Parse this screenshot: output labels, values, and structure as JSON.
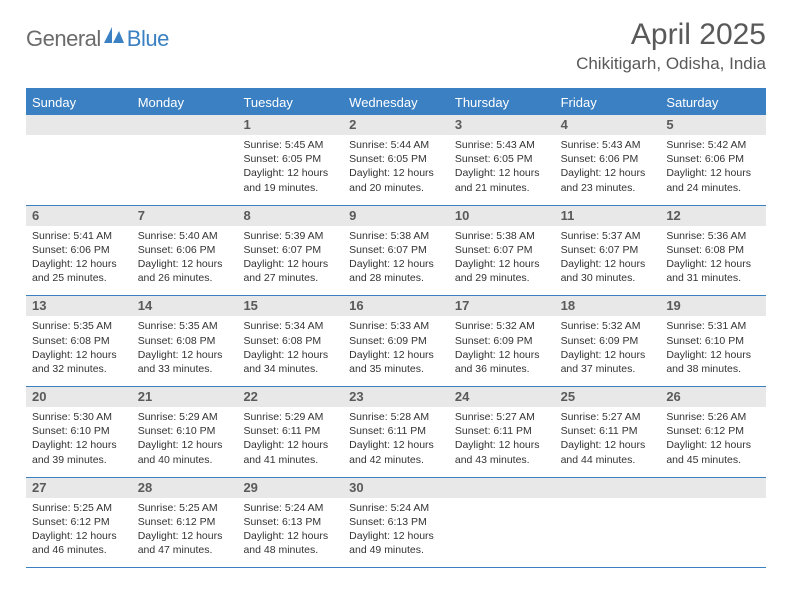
{
  "brand": {
    "text_general": "General",
    "text_blue": "Blue",
    "icon_color": "#3a80c3",
    "text_general_color": "#6b6b6b",
    "text_blue_color": "#3a80c3"
  },
  "header": {
    "month_title": "April 2025",
    "location": "Chikitigarh, Odisha, India",
    "title_color": "#595959"
  },
  "colors": {
    "header_bg": "#3a80c3",
    "header_text": "#ffffff",
    "row_divider": "#3a80c3",
    "daynum_bg": "#e8e8e8",
    "daynum_text": "#5a5a5a",
    "details_text": "#333333",
    "page_bg": "#ffffff"
  },
  "typography": {
    "month_title_size": 30,
    "location_size": 17,
    "dayhead_size": 13,
    "daynum_size": 13,
    "details_size": 10.5,
    "font_family": "Arial"
  },
  "day_headers": [
    "Sunday",
    "Monday",
    "Tuesday",
    "Wednesday",
    "Thursday",
    "Friday",
    "Saturday"
  ],
  "weeks": [
    [
      {
        "day": "",
        "sunrise": "",
        "sunset": "",
        "daylight1": "",
        "daylight2": ""
      },
      {
        "day": "",
        "sunrise": "",
        "sunset": "",
        "daylight1": "",
        "daylight2": ""
      },
      {
        "day": "1",
        "sunrise": "Sunrise: 5:45 AM",
        "sunset": "Sunset: 6:05 PM",
        "daylight1": "Daylight: 12 hours",
        "daylight2": "and 19 minutes."
      },
      {
        "day": "2",
        "sunrise": "Sunrise: 5:44 AM",
        "sunset": "Sunset: 6:05 PM",
        "daylight1": "Daylight: 12 hours",
        "daylight2": "and 20 minutes."
      },
      {
        "day": "3",
        "sunrise": "Sunrise: 5:43 AM",
        "sunset": "Sunset: 6:05 PM",
        "daylight1": "Daylight: 12 hours",
        "daylight2": "and 21 minutes."
      },
      {
        "day": "4",
        "sunrise": "Sunrise: 5:43 AM",
        "sunset": "Sunset: 6:06 PM",
        "daylight1": "Daylight: 12 hours",
        "daylight2": "and 23 minutes."
      },
      {
        "day": "5",
        "sunrise": "Sunrise: 5:42 AM",
        "sunset": "Sunset: 6:06 PM",
        "daylight1": "Daylight: 12 hours",
        "daylight2": "and 24 minutes."
      }
    ],
    [
      {
        "day": "6",
        "sunrise": "Sunrise: 5:41 AM",
        "sunset": "Sunset: 6:06 PM",
        "daylight1": "Daylight: 12 hours",
        "daylight2": "and 25 minutes."
      },
      {
        "day": "7",
        "sunrise": "Sunrise: 5:40 AM",
        "sunset": "Sunset: 6:06 PM",
        "daylight1": "Daylight: 12 hours",
        "daylight2": "and 26 minutes."
      },
      {
        "day": "8",
        "sunrise": "Sunrise: 5:39 AM",
        "sunset": "Sunset: 6:07 PM",
        "daylight1": "Daylight: 12 hours",
        "daylight2": "and 27 minutes."
      },
      {
        "day": "9",
        "sunrise": "Sunrise: 5:38 AM",
        "sunset": "Sunset: 6:07 PM",
        "daylight1": "Daylight: 12 hours",
        "daylight2": "and 28 minutes."
      },
      {
        "day": "10",
        "sunrise": "Sunrise: 5:38 AM",
        "sunset": "Sunset: 6:07 PM",
        "daylight1": "Daylight: 12 hours",
        "daylight2": "and 29 minutes."
      },
      {
        "day": "11",
        "sunrise": "Sunrise: 5:37 AM",
        "sunset": "Sunset: 6:07 PM",
        "daylight1": "Daylight: 12 hours",
        "daylight2": "and 30 minutes."
      },
      {
        "day": "12",
        "sunrise": "Sunrise: 5:36 AM",
        "sunset": "Sunset: 6:08 PM",
        "daylight1": "Daylight: 12 hours",
        "daylight2": "and 31 minutes."
      }
    ],
    [
      {
        "day": "13",
        "sunrise": "Sunrise: 5:35 AM",
        "sunset": "Sunset: 6:08 PM",
        "daylight1": "Daylight: 12 hours",
        "daylight2": "and 32 minutes."
      },
      {
        "day": "14",
        "sunrise": "Sunrise: 5:35 AM",
        "sunset": "Sunset: 6:08 PM",
        "daylight1": "Daylight: 12 hours",
        "daylight2": "and 33 minutes."
      },
      {
        "day": "15",
        "sunrise": "Sunrise: 5:34 AM",
        "sunset": "Sunset: 6:08 PM",
        "daylight1": "Daylight: 12 hours",
        "daylight2": "and 34 minutes."
      },
      {
        "day": "16",
        "sunrise": "Sunrise: 5:33 AM",
        "sunset": "Sunset: 6:09 PM",
        "daylight1": "Daylight: 12 hours",
        "daylight2": "and 35 minutes."
      },
      {
        "day": "17",
        "sunrise": "Sunrise: 5:32 AM",
        "sunset": "Sunset: 6:09 PM",
        "daylight1": "Daylight: 12 hours",
        "daylight2": "and 36 minutes."
      },
      {
        "day": "18",
        "sunrise": "Sunrise: 5:32 AM",
        "sunset": "Sunset: 6:09 PM",
        "daylight1": "Daylight: 12 hours",
        "daylight2": "and 37 minutes."
      },
      {
        "day": "19",
        "sunrise": "Sunrise: 5:31 AM",
        "sunset": "Sunset: 6:10 PM",
        "daylight1": "Daylight: 12 hours",
        "daylight2": "and 38 minutes."
      }
    ],
    [
      {
        "day": "20",
        "sunrise": "Sunrise: 5:30 AM",
        "sunset": "Sunset: 6:10 PM",
        "daylight1": "Daylight: 12 hours",
        "daylight2": "and 39 minutes."
      },
      {
        "day": "21",
        "sunrise": "Sunrise: 5:29 AM",
        "sunset": "Sunset: 6:10 PM",
        "daylight1": "Daylight: 12 hours",
        "daylight2": "and 40 minutes."
      },
      {
        "day": "22",
        "sunrise": "Sunrise: 5:29 AM",
        "sunset": "Sunset: 6:11 PM",
        "daylight1": "Daylight: 12 hours",
        "daylight2": "and 41 minutes."
      },
      {
        "day": "23",
        "sunrise": "Sunrise: 5:28 AM",
        "sunset": "Sunset: 6:11 PM",
        "daylight1": "Daylight: 12 hours",
        "daylight2": "and 42 minutes."
      },
      {
        "day": "24",
        "sunrise": "Sunrise: 5:27 AM",
        "sunset": "Sunset: 6:11 PM",
        "daylight1": "Daylight: 12 hours",
        "daylight2": "and 43 minutes."
      },
      {
        "day": "25",
        "sunrise": "Sunrise: 5:27 AM",
        "sunset": "Sunset: 6:11 PM",
        "daylight1": "Daylight: 12 hours",
        "daylight2": "and 44 minutes."
      },
      {
        "day": "26",
        "sunrise": "Sunrise: 5:26 AM",
        "sunset": "Sunset: 6:12 PM",
        "daylight1": "Daylight: 12 hours",
        "daylight2": "and 45 minutes."
      }
    ],
    [
      {
        "day": "27",
        "sunrise": "Sunrise: 5:25 AM",
        "sunset": "Sunset: 6:12 PM",
        "daylight1": "Daylight: 12 hours",
        "daylight2": "and 46 minutes."
      },
      {
        "day": "28",
        "sunrise": "Sunrise: 5:25 AM",
        "sunset": "Sunset: 6:12 PM",
        "daylight1": "Daylight: 12 hours",
        "daylight2": "and 47 minutes."
      },
      {
        "day": "29",
        "sunrise": "Sunrise: 5:24 AM",
        "sunset": "Sunset: 6:13 PM",
        "daylight1": "Daylight: 12 hours",
        "daylight2": "and 48 minutes."
      },
      {
        "day": "30",
        "sunrise": "Sunrise: 5:24 AM",
        "sunset": "Sunset: 6:13 PM",
        "daylight1": "Daylight: 12 hours",
        "daylight2": "and 49 minutes."
      },
      {
        "day": "",
        "sunrise": "",
        "sunset": "",
        "daylight1": "",
        "daylight2": ""
      },
      {
        "day": "",
        "sunrise": "",
        "sunset": "",
        "daylight1": "",
        "daylight2": ""
      },
      {
        "day": "",
        "sunrise": "",
        "sunset": "",
        "daylight1": "",
        "daylight2": ""
      }
    ]
  ]
}
